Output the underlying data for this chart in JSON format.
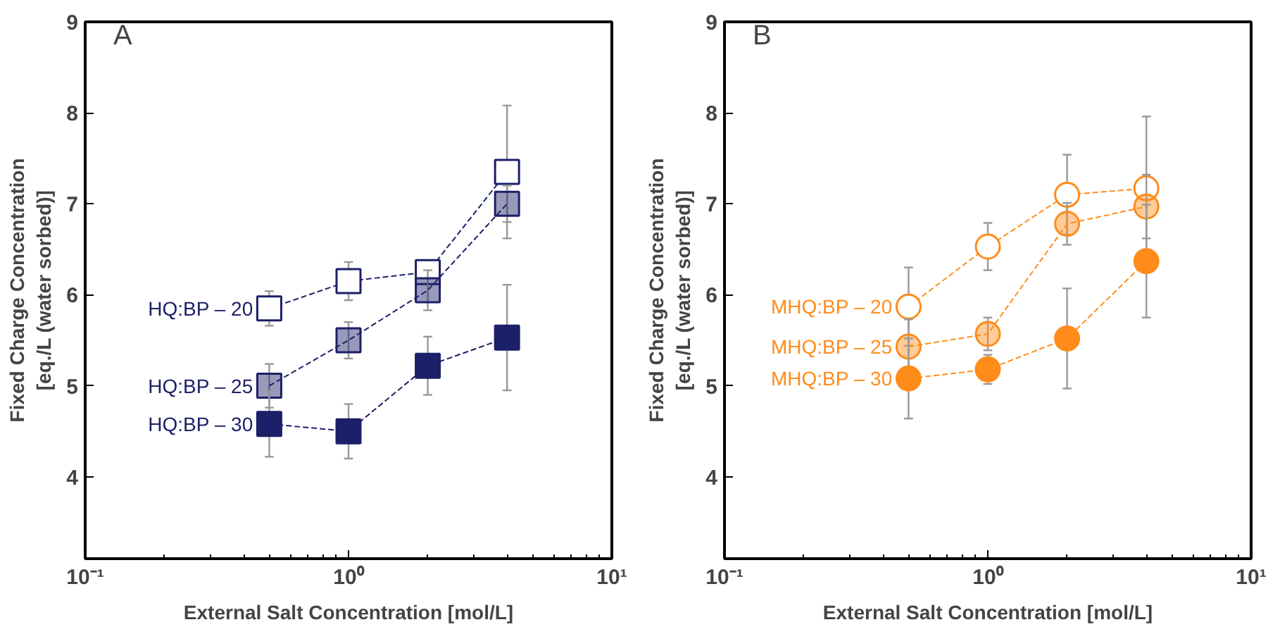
{
  "chart_data": [
    {
      "type": "line",
      "xlabel": "External Salt Concentration [mol/L]",
      "ylabel": "Fixed Charge Concentration\n[eq./L (water sorbed)]",
      "annotations": [
        "A"
      ],
      "log": "x",
      "xlim": [
        0.1,
        10
      ],
      "xticks": [
        {
          "value": 0.1,
          "label": "10⁻¹"
        },
        {
          "value": 1,
          "label": "10⁰"
        },
        {
          "value": 10,
          "label": "10¹"
        }
      ],
      "ylim": [
        3.1,
        9
      ],
      "yticks": [
        4,
        5,
        6,
        7,
        8,
        9
      ],
      "grid": false,
      "legend": false,
      "marker": "square",
      "line_style": "dashed",
      "x": [
        0.5,
        1,
        2,
        4
      ],
      "series": [
        {
          "name": "HQ:BP – 20",
          "color": "#1c2068",
          "values": [
            5.85,
            6.15,
            6.25,
            7.35
          ],
          "errors": [
            0.19,
            0.21,
            0.13,
            0.73
          ]
        },
        {
          "name": "HQ:BP – 25",
          "color": "#1c2068",
          "values": [
            5.0,
            5.5,
            6.05,
            7.0
          ],
          "errors": [
            0.24,
            0.2,
            0.22,
            0.2
          ]
        },
        {
          "name": "HQ:BP – 30",
          "color": "#1c2068",
          "values": [
            4.58,
            4.5,
            5.22,
            5.53
          ],
          "errors": [
            0.36,
            0.3,
            0.32,
            0.58
          ]
        }
      ]
    },
    {
      "type": "line",
      "xlabel": "External Salt Concentration [mol/L]",
      "ylabel": "Fixed Charge Concentration\n[eq./L (water sorbed)]",
      "annotations": [
        "B"
      ],
      "log": "x",
      "xlim": [
        0.1,
        10
      ],
      "xticks": [
        {
          "value": 0.1,
          "label": "10⁻¹"
        },
        {
          "value": 1,
          "label": "10⁰"
        },
        {
          "value": 10,
          "label": "10¹"
        }
      ],
      "ylim": [
        3.1,
        9
      ],
      "yticks": [
        4,
        5,
        6,
        7,
        8,
        9
      ],
      "grid": false,
      "legend": false,
      "marker": "circle",
      "line_style": "dashed",
      "x": [
        0.5,
        1,
        2,
        4
      ],
      "series": [
        {
          "name": "MHQ:BP – 20",
          "color": "#ff8c1a",
          "values": [
            5.87,
            6.53,
            7.1,
            7.17
          ],
          "errors": [
            0.43,
            0.26,
            0.44,
            0.79
          ]
        },
        {
          "name": "MHQ:BP – 25",
          "color": "#ff8c1a",
          "values": [
            5.43,
            5.57,
            6.78,
            6.97
          ],
          "errors": [
            0.3,
            0.18,
            0.23,
            0.35
          ]
        },
        {
          "name": "MHQ:BP – 30",
          "color": "#ff8c1a",
          "values": [
            5.08,
            5.18,
            5.52,
            6.37
          ],
          "errors": [
            0.44,
            0.16,
            0.55,
            0.62
          ]
        }
      ]
    }
  ]
}
